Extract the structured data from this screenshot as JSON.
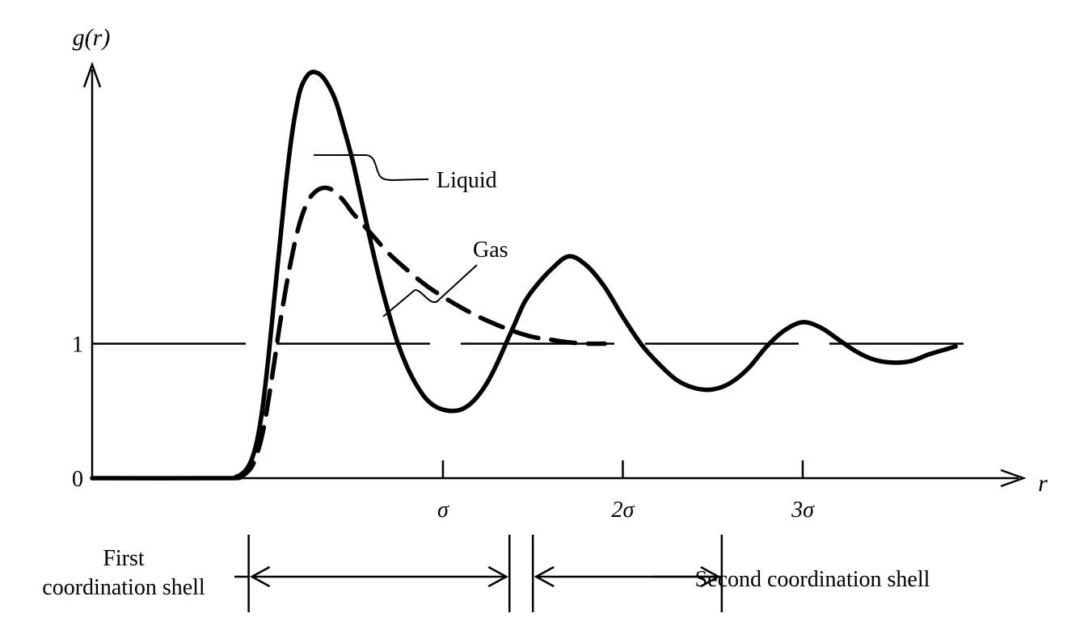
{
  "chart_data": {
    "type": "line",
    "ylabel": "g(r)",
    "xlabel": "r",
    "x_ticks": [
      {
        "value": 1,
        "label": "σ"
      },
      {
        "value": 2,
        "label": "2σ"
      },
      {
        "value": 3,
        "label": "3σ"
      }
    ],
    "y_ticks": [
      {
        "value": 0,
        "label": "0"
      },
      {
        "value": 1,
        "label": "1"
      }
    ],
    "xlim": [
      -0.95,
      4.2
    ],
    "ylim": [
      0,
      3.1
    ],
    "reference_line": {
      "y": 1,
      "style": "long-dash"
    },
    "series": [
      {
        "name": "Liquid",
        "style": "solid",
        "x": [
          -0.95,
          -0.2,
          -0.15,
          -0.12,
          -0.09,
          -0.06,
          -0.03,
          0.0,
          0.03,
          0.06,
          0.09,
          0.12,
          0.15,
          0.18,
          0.21,
          0.25,
          0.29,
          0.34,
          0.4,
          0.45,
          0.5,
          0.55,
          0.6,
          0.65,
          0.7,
          0.75,
          0.8,
          0.85,
          0.9,
          0.95,
          1.0,
          1.05,
          1.1,
          1.15,
          1.2,
          1.25,
          1.3,
          1.35,
          1.4,
          1.45,
          1.5,
          1.6,
          1.7,
          1.8,
          1.9,
          2.0,
          2.1,
          2.2,
          2.3,
          2.4,
          2.5,
          2.6,
          2.7,
          2.8,
          2.9,
          3.0,
          3.1,
          3.2,
          3.3,
          3.4,
          3.5,
          3.6,
          3.7,
          3.8,
          3.85
        ],
        "values": [
          0.0,
          0.0,
          0.01,
          0.03,
          0.07,
          0.15,
          0.3,
          0.55,
          0.9,
          1.3,
          1.7,
          2.1,
          2.45,
          2.72,
          2.9,
          3.0,
          3.02,
          2.97,
          2.82,
          2.6,
          2.35,
          2.05,
          1.75,
          1.47,
          1.22,
          1.0,
          0.83,
          0.7,
          0.6,
          0.54,
          0.51,
          0.5,
          0.51,
          0.55,
          0.62,
          0.72,
          0.85,
          1.0,
          1.15,
          1.3,
          1.4,
          1.55,
          1.65,
          1.58,
          1.42,
          1.2,
          1.0,
          0.85,
          0.73,
          0.67,
          0.66,
          0.71,
          0.82,
          0.98,
          1.1,
          1.16,
          1.12,
          1.03,
          0.94,
          0.88,
          0.86,
          0.87,
          0.92,
          0.96,
          0.98
        ]
      },
      {
        "name": "Gas",
        "style": "dashed",
        "x": [
          -0.15,
          -0.1,
          -0.05,
          0.0,
          0.05,
          0.1,
          0.15,
          0.2,
          0.25,
          0.3,
          0.35,
          0.4,
          0.45,
          0.5,
          0.6,
          0.7,
          0.8,
          0.9,
          1.0,
          1.1,
          1.2,
          1.3,
          1.4,
          1.5,
          1.6,
          1.7,
          1.8,
          1.9
        ],
        "values": [
          0.0,
          0.03,
          0.12,
          0.35,
          0.75,
          1.2,
          1.58,
          1.88,
          2.06,
          2.14,
          2.16,
          2.13,
          2.06,
          1.97,
          1.82,
          1.67,
          1.55,
          1.44,
          1.35,
          1.27,
          1.2,
          1.14,
          1.09,
          1.05,
          1.03,
          1.01,
          1.0,
          1.0
        ]
      }
    ],
    "annotations": [
      {
        "text": "Liquid",
        "target": "liquid-first-peak"
      },
      {
        "text": "Gas",
        "target": "gas-first-peak"
      }
    ],
    "regions": [
      {
        "label_lines": [
          "First",
          "coordination shell"
        ],
        "from": -0.08,
        "to": 1.37
      },
      {
        "label": "Second coordination shell",
        "from": 1.5,
        "to": 2.55
      }
    ]
  }
}
